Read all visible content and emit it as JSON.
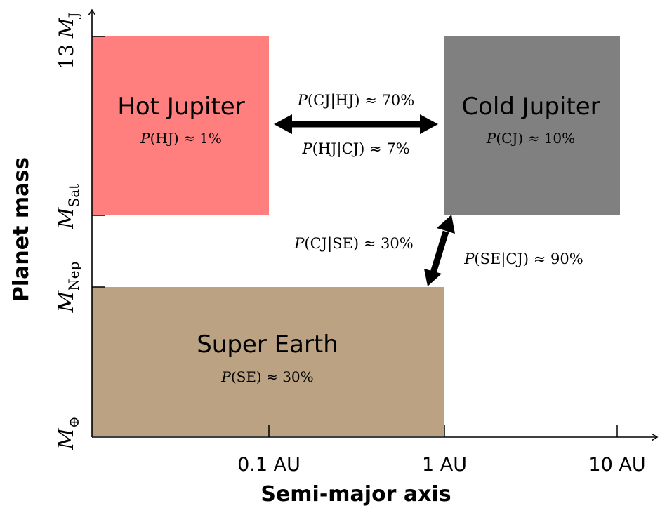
{
  "diagram": {
    "x_axis_title": "Semi-major axis",
    "y_axis_title": "Planet mass",
    "x_ticks": [
      "0.1 AU",
      "1 AU",
      "10 AU"
    ],
    "y_ticks": [
      {
        "base": "M",
        "sub": "⊕",
        "prefix": ""
      },
      {
        "base": "M",
        "sub": "Nep",
        "prefix": ""
      },
      {
        "base": "M",
        "sub": "Sat",
        "prefix": ""
      },
      {
        "base": "M",
        "sub": "J",
        "prefix": "13 "
      }
    ],
    "regions": [
      {
        "name": "Hot Jupiter",
        "prob_fn": "P",
        "prob_arg": "(HJ)",
        "prob_val": "≈ 1%",
        "color": "#ff7f7f"
      },
      {
        "name": "Cold Jupiter",
        "prob_fn": "P",
        "prob_arg": "(CJ)",
        "prob_val": "≈ 10%",
        "color": "#808080"
      },
      {
        "name": "Super Earth",
        "prob_fn": "P",
        "prob_arg": "(SE)",
        "prob_val": "≈ 30%",
        "color": "#bba282"
      }
    ],
    "conditionals": {
      "cj_given_hj": {
        "fn": "P",
        "arg": "(CJ|HJ)",
        "val": "≈ 70%"
      },
      "hj_given_cj": {
        "fn": "P",
        "arg": "(HJ|CJ)",
        "val": "≈ 7%"
      },
      "cj_given_se": {
        "fn": "P",
        "arg": "(CJ|SE)",
        "val": "≈ 30%"
      },
      "se_given_cj": {
        "fn": "P",
        "arg": "(SE|CJ)",
        "val": "≈ 90%"
      }
    },
    "axis_color": "#000000",
    "arrow_color": "#000000"
  }
}
